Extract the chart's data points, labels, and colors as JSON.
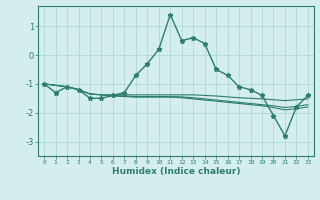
{
  "xlabel": "Humidex (Indice chaleur)",
  "x_values": [
    0,
    1,
    2,
    3,
    4,
    5,
    6,
    7,
    8,
    9,
    10,
    11,
    12,
    13,
    14,
    15,
    16,
    17,
    18,
    19,
    20,
    21,
    22,
    23
  ],
  "series": [
    {
      "y": [
        -1.0,
        -1.3,
        -1.1,
        -1.2,
        -1.5,
        -1.5,
        -1.4,
        -1.3,
        -0.7,
        -0.3,
        0.2,
        1.4,
        0.5,
        0.6,
        0.4,
        -0.5,
        -0.7,
        -1.1,
        -1.2,
        -1.4,
        -2.1,
        -2.8,
        -1.8,
        -1.4
      ],
      "color": "#2e7d6e",
      "linewidth": 1.0,
      "marker": "*",
      "markersize": 3.5
    },
    {
      "y": [
        -1.0,
        -1.05,
        -1.1,
        -1.2,
        -1.35,
        -1.38,
        -1.38,
        -1.38,
        -1.38,
        -1.38,
        -1.38,
        -1.38,
        -1.38,
        -1.38,
        -1.4,
        -1.42,
        -1.45,
        -1.48,
        -1.5,
        -1.52,
        -1.55,
        -1.58,
        -1.55,
        -1.52
      ],
      "color": "#2e7d6e",
      "linewidth": 0.8,
      "marker": null
    },
    {
      "y": [
        -1.0,
        -1.05,
        -1.1,
        -1.2,
        -1.35,
        -1.38,
        -1.4,
        -1.42,
        -1.44,
        -1.44,
        -1.44,
        -1.44,
        -1.45,
        -1.48,
        -1.52,
        -1.56,
        -1.6,
        -1.64,
        -1.68,
        -1.72,
        -1.76,
        -1.82,
        -1.78,
        -1.72
      ],
      "color": "#2e7d6e",
      "linewidth": 0.8,
      "marker": null
    },
    {
      "y": [
        -1.0,
        -1.05,
        -1.1,
        -1.2,
        -1.35,
        -1.38,
        -1.42,
        -1.44,
        -1.46,
        -1.46,
        -1.46,
        -1.46,
        -1.48,
        -1.52,
        -1.56,
        -1.6,
        -1.64,
        -1.68,
        -1.72,
        -1.76,
        -1.82,
        -1.9,
        -1.86,
        -1.8
      ],
      "color": "#2e7d6e",
      "linewidth": 0.8,
      "marker": null
    }
  ],
  "xlim": [
    -0.5,
    23.5
  ],
  "ylim": [
    -3.5,
    1.7
  ],
  "yticks": [
    -3,
    -2,
    -1,
    0,
    1
  ],
  "xticks": [
    0,
    1,
    2,
    3,
    4,
    5,
    6,
    7,
    8,
    9,
    10,
    11,
    12,
    13,
    14,
    15,
    16,
    17,
    18,
    19,
    20,
    21,
    22,
    23
  ],
  "bg_color": "#d4eeee",
  "grid_color": "#a8d4d4",
  "axis_color": "#2e7d6e",
  "label_color": "#2e7d6e",
  "tick_color": "#2e7d6e"
}
